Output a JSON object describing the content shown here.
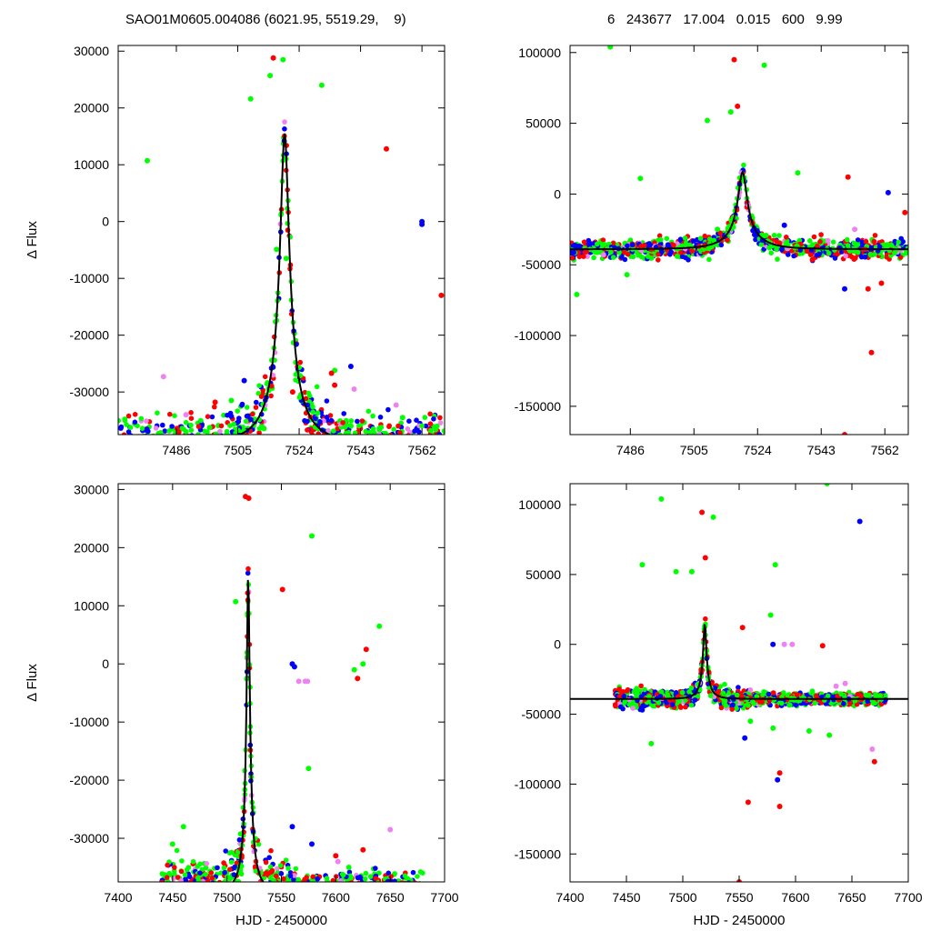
{
  "header": {
    "left": "SAO01M0605.004086 (6021.95, 5519.29,    9)",
    "right": "6   243677   17.004   0.015   600   9.99"
  },
  "colors": {
    "red": "#ff0000",
    "green": "#00ff00",
    "blue": "#0000ff",
    "violet": "#ee82ee",
    "model": "#000000"
  },
  "chart_data": [
    {
      "type": "scatter",
      "panel": "top-left",
      "xlim": [
        7468,
        7569
      ],
      "ylim": [
        -37500,
        31000
      ],
      "xticks": [
        7486,
        7505,
        7524,
        7543,
        7562
      ],
      "xtick_labels": [
        "7486",
        "7505",
        "7524",
        "7543",
        "7562"
      ],
      "yticks": [
        30000,
        20000,
        10000,
        0,
        -10000,
        -20000,
        -30000
      ],
      "ytick_labels": [
        "30000",
        "20000",
        "10000",
        "0",
        "-10000",
        "-20000",
        "-30000"
      ],
      "xlabel": "",
      "ylabel": "Δ Flux",
      "model": {
        "t0": 7519.5,
        "peak": 15500,
        "baseline": -39000,
        "tau": 11.0,
        "u0": 0.12
      },
      "series": [
        {
          "color": "green",
          "points": [
            [
              7477,
              10700
            ],
            [
              7509,
              21600
            ],
            [
              7515,
              25700
            ],
            [
              7519,
              28500
            ],
            [
              7531,
              24000
            ],
            [
              7503,
              -31500
            ],
            [
              7535,
              -26200
            ],
            [
              7517,
              -4900
            ],
            [
              7520,
              -6500
            ],
            [
              7489,
              -37000
            ],
            [
              7556,
              -34500
            ]
          ]
        },
        {
          "color": "red",
          "points": [
            [
              7516,
              28800
            ],
            [
              7551,
              12800
            ],
            [
              7568,
              -13000
            ],
            [
              7534,
              -26700
            ],
            [
              7535,
              -28800
            ],
            [
              7498,
              -31800
            ],
            [
              7522,
              -30000
            ]
          ]
        },
        {
          "color": "blue",
          "points": [
            [
              7562,
              -500
            ],
            [
              7562,
              0
            ],
            [
              7507,
              -28000
            ],
            [
              7540,
              -25500
            ],
            [
              7503,
              -34300
            ]
          ]
        },
        {
          "color": "violet",
          "points": [
            [
              7482,
              -27300
            ],
            [
              7489,
              -34000
            ],
            [
              7554,
              -32300
            ],
            [
              7541,
              -29500
            ]
          ]
        }
      ]
    },
    {
      "type": "scatter",
      "panel": "top-right",
      "xlim": [
        7468,
        7569
      ],
      "ylim": [
        -170000,
        105000
      ],
      "xticks": [
        7486,
        7505,
        7524,
        7543,
        7562
      ],
      "xtick_labels": [
        "7486",
        "7505",
        "7524",
        "7543",
        "7562"
      ],
      "yticks": [
        100000,
        50000,
        0,
        -50000,
        -100000,
        -150000
      ],
      "ytick_labels": [
        "100000",
        "50000",
        "0",
        "-50000",
        "-100000",
        "-150000"
      ],
      "xlabel": "",
      "ylabel": "",
      "model": {
        "t0": 7519.5,
        "peak": 15500,
        "baseline": -39000,
        "tau": 11.0,
        "u0": 0.12
      },
      "series": [
        {
          "color": "green",
          "points": [
            [
              7480,
              104000
            ],
            [
              7526,
              91000
            ],
            [
              7509,
              52000
            ],
            [
              7516,
              58000
            ],
            [
              7470,
              -71000
            ],
            [
              7485,
              -57000
            ],
            [
              7500,
              -44000
            ],
            [
              7512,
              -25000
            ],
            [
              7536,
              15000
            ],
            [
              7489,
              11000
            ]
          ]
        },
        {
          "color": "red",
          "points": [
            [
              7517,
              95000
            ],
            [
              7518,
              62000
            ],
            [
              7551,
              12000
            ],
            [
              7558,
              -112000
            ],
            [
              7550,
              -170000
            ],
            [
              7557,
              -67000
            ],
            [
              7561,
              -63000
            ],
            [
              7568,
              -13000
            ]
          ]
        },
        {
          "color": "blue",
          "points": [
            [
              7563,
              1000
            ],
            [
              7550,
              -67000
            ],
            [
              7532,
              -22000
            ]
          ]
        },
        {
          "color": "violet",
          "points": [
            [
              7545,
              -33000
            ],
            [
              7553,
              -25000
            ],
            [
              7478,
              -43000
            ]
          ]
        }
      ]
    },
    {
      "type": "scatter",
      "panel": "bottom-left",
      "xlim": [
        7400,
        7700
      ],
      "ylim": [
        -37500,
        31000
      ],
      "xticks": [
        7400,
        7450,
        7500,
        7550,
        7600,
        7650,
        7700
      ],
      "xtick_labels": [
        "7400",
        "7450",
        "7500",
        "7550",
        "7600",
        "7650",
        "7700"
      ],
      "yticks": [
        30000,
        20000,
        10000,
        0,
        -10000,
        -20000,
        -30000
      ],
      "ytick_labels": [
        "30000",
        "20000",
        "10000",
        "0",
        "-10000",
        "-20000",
        "-30000"
      ],
      "xlabel": "HJD - 2450000",
      "ylabel": "Δ Flux",
      "model": {
        "t0": 7519.5,
        "peak": 15500,
        "baseline": -39000,
        "tau": 11.0,
        "u0": 0.12
      },
      "series": [
        {
          "color": "green",
          "points": [
            [
              7578,
              22000
            ],
            [
              7640,
              6500
            ],
            [
              7625,
              0
            ],
            [
              7617,
              -1000
            ],
            [
              7508,
              10700
            ],
            [
              7575,
              -18000
            ],
            [
              7612,
              -35000
            ],
            [
              7460,
              -28000
            ],
            [
              7450,
              -31000
            ]
          ]
        },
        {
          "color": "red",
          "points": [
            [
              7517,
              28800
            ],
            [
              7520,
              28500
            ],
            [
              7551,
              12800
            ],
            [
              7628,
              2500
            ],
            [
              7620,
              -2500
            ],
            [
              7625,
              -32000
            ],
            [
              7600,
              -33000
            ]
          ]
        },
        {
          "color": "blue",
          "points": [
            [
              7560,
              0
            ],
            [
              7562,
              -500
            ],
            [
              7578,
              -31000
            ],
            [
              7560,
              -28000
            ]
          ]
        },
        {
          "color": "violet",
          "points": [
            [
              7566,
              -3000
            ],
            [
              7572,
              -3000
            ],
            [
              7574,
              -3000
            ],
            [
              7650,
              -28500
            ],
            [
              7602,
              -34000
            ]
          ]
        }
      ]
    },
    {
      "type": "scatter",
      "panel": "bottom-right",
      "xlim": [
        7400,
        7700
      ],
      "ylim": [
        -170000,
        115000
      ],
      "xticks": [
        7400,
        7450,
        7500,
        7550,
        7600,
        7650,
        7700
      ],
      "xtick_labels": [
        "7400",
        "7450",
        "7500",
        "7550",
        "7600",
        "7650",
        "7700"
      ],
      "yticks": [
        100000,
        50000,
        0,
        -50000,
        -100000,
        -150000
      ],
      "ytick_labels": [
        "100000",
        "50000",
        "0",
        "-50000",
        "-100000",
        "-150000"
      ],
      "xlabel": "HJD - 2450000",
      "ylabel": "",
      "model": {
        "t0": 7519.5,
        "peak": 15500,
        "baseline": -39000,
        "tau": 11.0,
        "u0": 0.12
      },
      "series": [
        {
          "color": "green",
          "points": [
            [
              7481,
              104000
            ],
            [
              7628,
              115000
            ],
            [
              7527,
              91000
            ],
            [
              7464,
              57000
            ],
            [
              7582,
              57000
            ],
            [
              7494,
              52000
            ],
            [
              7508,
              52000
            ],
            [
              7578,
              21000
            ],
            [
              7472,
              -71000
            ],
            [
              7560,
              -55000
            ],
            [
              7580,
              -60000
            ],
            [
              7612,
              -62000
            ],
            [
              7630,
              -65000
            ]
          ]
        },
        {
          "color": "red",
          "points": [
            [
              7517,
              94500
            ],
            [
              7520,
              62000
            ],
            [
              7553,
              12000
            ],
            [
              7558,
              -113000
            ],
            [
              7586,
              -116000
            ],
            [
              7550,
              -170000
            ],
            [
              7624,
              -1000
            ],
            [
              7670,
              -84000
            ],
            [
              7586,
              -92000
            ]
          ]
        },
        {
          "color": "blue",
          "points": [
            [
              7657,
              88000
            ],
            [
              7580,
              0
            ],
            [
              7584,
              -97000
            ],
            [
              7555,
              -67000
            ]
          ]
        },
        {
          "color": "violet",
          "points": [
            [
              7590,
              0
            ],
            [
              7597,
              0
            ],
            [
              7644,
              -28000
            ],
            [
              7668,
              -75000
            ],
            [
              7636,
              -30000
            ]
          ]
        }
      ]
    }
  ]
}
